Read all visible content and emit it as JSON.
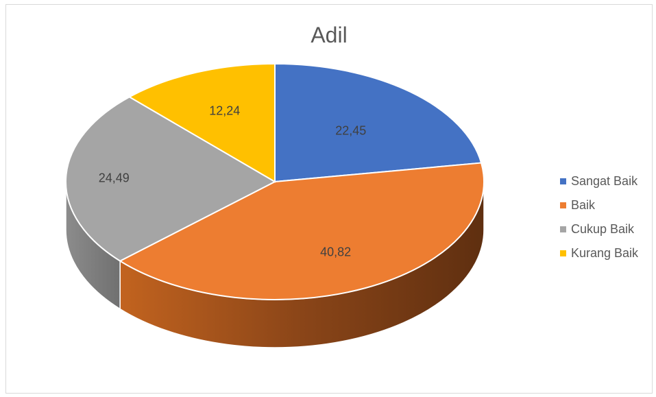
{
  "chart_data": {
    "type": "pie",
    "title": "Adil",
    "categories": [
      "Sangat Baik",
      "Baik",
      "Cukup Baik",
      "Kurang Baik"
    ],
    "values": [
      22.45,
      40.82,
      24.49,
      12.24
    ],
    "labels": [
      "22,45",
      "40,82",
      "24,49",
      "12,24"
    ],
    "colors": [
      "#4472c4",
      "#ed7d31",
      "#a5a5a5",
      "#ffc000"
    ],
    "legend_position": "right",
    "style": "3d"
  }
}
